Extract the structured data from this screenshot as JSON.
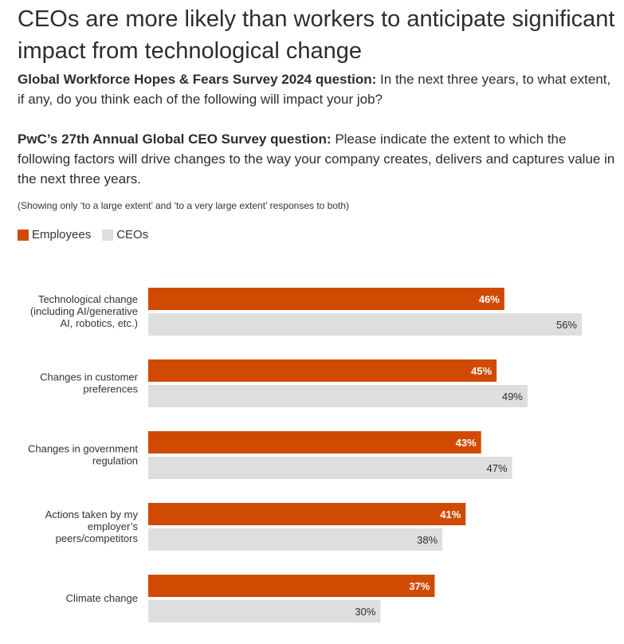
{
  "title": "CEOs are more likely than workers to anticipate significant impact from technological change",
  "question1": {
    "label": "Global Workforce Hopes & Fears Survey 2024 question:",
    "text": " In the next three years, to what extent, if any, do you think each of the following will impact your job?"
  },
  "question2": {
    "label": "PwC’s 27th Annual Global CEO Survey question:",
    "text": " Please indicate the extent to which the following factors will drive changes to the way your company creates, delivers and captures value in the next three years."
  },
  "note": "(Showing only ‘to a large extent’ and ‘to a very large extent’ responses to both)",
  "chart_data": {
    "type": "bar",
    "orientation": "horizontal",
    "categories": [
      [
        "Technological change",
        "(including AI/generative",
        "AI, robotics, etc.)"
      ],
      [
        "Changes in customer",
        "preferences"
      ],
      [
        "Changes in government",
        "regulation"
      ],
      [
        "Actions taken by my",
        "employer’s",
        "peers/competitors"
      ],
      [
        "Climate change"
      ]
    ],
    "series": [
      {
        "name": "Employees",
        "color": "#D04A02",
        "values": [
          46,
          45,
          43,
          41,
          37
        ]
      },
      {
        "name": "CEOs",
        "color": "#DEDEDE",
        "values": [
          56,
          49,
          47,
          38,
          30
        ]
      }
    ],
    "unit": "%",
    "xlim": [
      0,
      56
    ],
    "grid": false,
    "legend": "top-left"
  }
}
